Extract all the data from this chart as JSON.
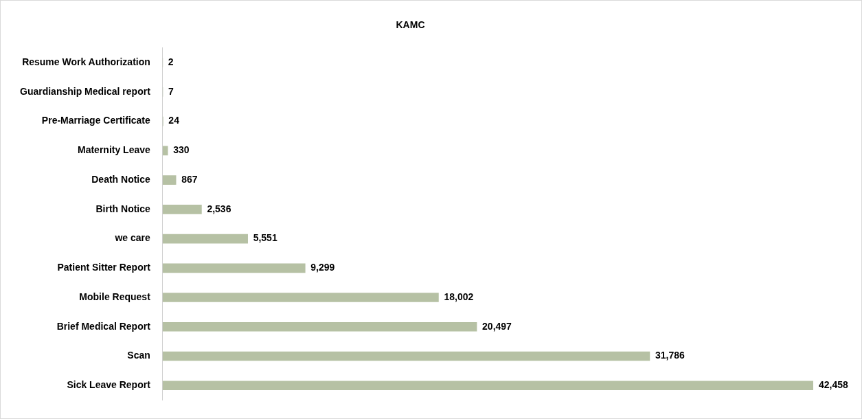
{
  "chart_data": {
    "type": "bar",
    "orientation": "horizontal",
    "title": "KAMC",
    "categories": [
      "Resume Work Authorization",
      "Guardianship Medical report",
      "Pre-Marriage Certificate",
      "Maternity Leave",
      "Death Notice",
      "Birth Notice",
      "we care",
      "Patient Sitter Report",
      "Mobile Request",
      "Brief Medical Report",
      "Scan",
      "Sick Leave Report"
    ],
    "values": [
      2,
      7,
      24,
      330,
      867,
      2536,
      5551,
      9299,
      18002,
      20497,
      31786,
      42458
    ],
    "value_labels": [
      "2",
      "7",
      "24",
      "330",
      "867",
      "2,536",
      "5,551",
      "9,299",
      "18,002",
      "20,497",
      "31,786",
      "42,458"
    ],
    "color": "#b6c1a4"
  }
}
